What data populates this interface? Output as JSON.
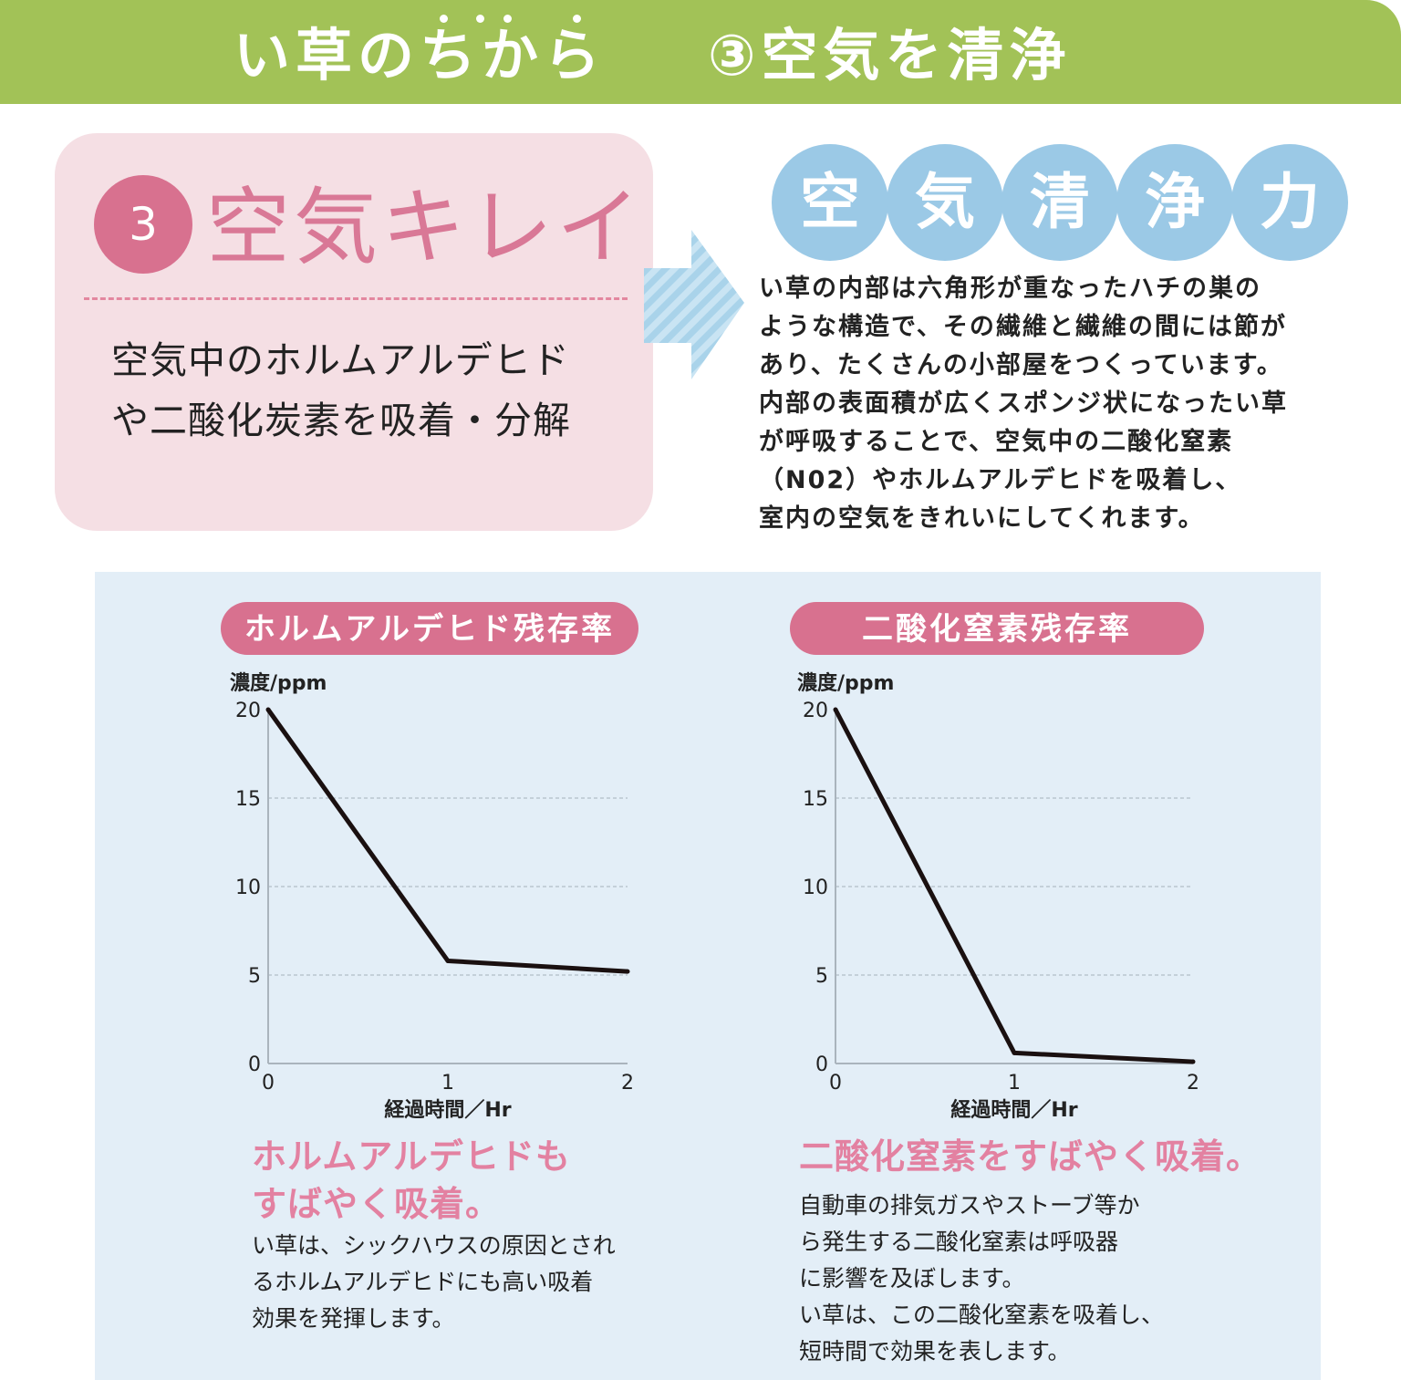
{
  "header": {
    "left_title": "い草のちから",
    "right_title": "③空気を清浄"
  },
  "feature": {
    "number": "3",
    "heading": "空気キレイ",
    "body_lines": [
      "空気中のホルムアルデヒド",
      "や二酸化炭素を吸着・分解"
    ]
  },
  "bubbles": [
    "空",
    "気",
    "清",
    "浄",
    "力"
  ],
  "description_lines": [
    "い草の内部は六角形が重なったハチの巣の",
    "ような構造で、その繊維と繊維の間には節が",
    "あり、たくさんの小部屋をつくっています。",
    "内部の表面積が広くスポンジ状になったい草",
    "が呼吸することで、空気中の二酸化窒素",
    "（N02）やホルムアルデヒドを吸着し、",
    "室内の空気をきれいにしてくれます。"
  ],
  "colors": {
    "header_green": "#a2c257",
    "pink_box": "#f5dfe4",
    "accent_pink": "#d8718f",
    "bubble_blue": "#9bc9e6",
    "panel_blue": "#e3eef7"
  },
  "chart_data": [
    {
      "type": "line",
      "title": "ホルムアルデヒド残存率",
      "ylabel": "濃度/ppm",
      "xlabel": "経過時間／Hr",
      "x": [
        0,
        1,
        2
      ],
      "y": [
        20,
        5.8,
        5.2
      ],
      "xlim": [
        0,
        2
      ],
      "ylim": [
        0,
        20
      ],
      "yticks": [
        "0",
        "5",
        "10",
        "15",
        "20"
      ],
      "xticks": [
        "0",
        "1",
        "2"
      ],
      "grid": "horizontal dashed"
    },
    {
      "type": "line",
      "title": "二酸化窒素残存率",
      "ylabel": "濃度/ppm",
      "xlabel": "経過時間／Hr",
      "x": [
        0,
        1,
        2
      ],
      "y": [
        20,
        0.6,
        0.1
      ],
      "xlim": [
        0,
        2
      ],
      "ylim": [
        0,
        20
      ],
      "yticks": [
        "0",
        "5",
        "10",
        "15",
        "20"
      ],
      "xticks": [
        "0",
        "1",
        "2"
      ],
      "grid": "horizontal dashed"
    }
  ],
  "captions": [
    {
      "title_lines": [
        "ホルムアルデヒドも",
        "すばやく吸着。"
      ],
      "body_lines": [
        "い草は、シックハウスの原因とされ",
        "るホルムアルデヒドにも高い吸着",
        "効果を発揮します。"
      ]
    },
    {
      "title_lines": [
        "二酸化窒素をすばやく吸着。"
      ],
      "body_lines": [
        "自動車の排気ガスやストーブ等か",
        "ら発生する二酸化窒素は呼吸器",
        "に影響を及ぼします。",
        "い草は、この二酸化窒素を吸着し、",
        "短時間で効果を表します。"
      ]
    }
  ]
}
